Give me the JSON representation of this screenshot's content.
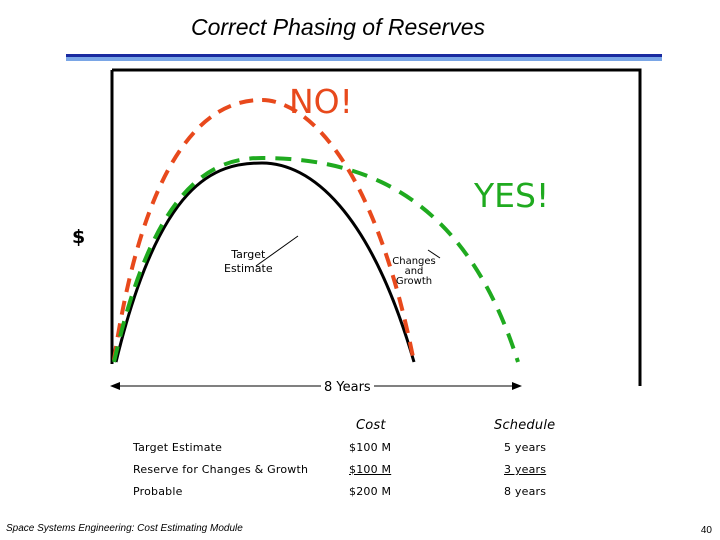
{
  "title": "Correct Phasing of Reserves",
  "labels": {
    "no": "NO!",
    "yes": "YES!",
    "dollar": "$",
    "target_line1": "Target",
    "target_line2": "Estimate",
    "changes_line1": "Changes",
    "changes_line2": "and",
    "changes_line3": "Growth",
    "duration": "8 Years"
  },
  "colors": {
    "no_curve": "#e8491c",
    "yes_curve": "#1faa1f",
    "target_curve": "#000000",
    "rule_dark": "#1a2aa0",
    "rule_light": "#7aa6e6"
  },
  "table": {
    "headers": {
      "cost": "Cost",
      "schedule": "Schedule"
    },
    "rows": [
      {
        "label": "Target Estimate",
        "cost": "$100 M",
        "schedule": "5 years"
      },
      {
        "label": "Reserve for Changes & Growth",
        "cost": "$100 M",
        "schedule": "3 years"
      },
      {
        "label": "Probable",
        "cost": "$200 M",
        "schedule": "8 years"
      }
    ]
  },
  "footer": "Space Systems Engineering: Cost Estimating Module",
  "page_number": "40"
}
